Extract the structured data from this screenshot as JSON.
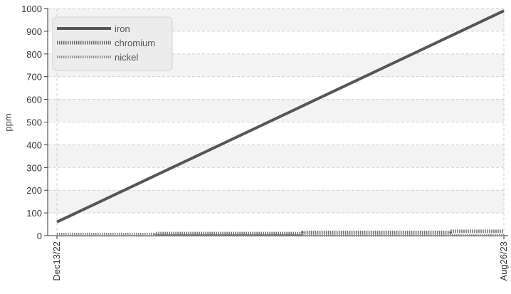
{
  "chart_data": {
    "type": "line",
    "ylabel": "ppm",
    "ylim": [
      0,
      1000
    ],
    "yticks": [
      0,
      100,
      200,
      300,
      400,
      500,
      600,
      700,
      800,
      900,
      1000
    ],
    "x_start": "Dec13/22",
    "x_end": "Aug26/23",
    "xticks": [
      "Dec13/22",
      "Aug26/23"
    ],
    "grid": true,
    "legend_position": "top-left",
    "series": [
      {
        "name": "iron",
        "color": "#555555",
        "style": "solid",
        "x": [
          0,
          1
        ],
        "values": [
          60,
          990
        ]
      },
      {
        "name": "chromium",
        "color": "#6a6a6a",
        "style": "dotted",
        "x": [
          0,
          0.22,
          0.22,
          0.55,
          0.55,
          0.88,
          0.88,
          1
        ],
        "values": [
          4,
          4,
          9,
          9,
          14,
          14,
          19,
          19
        ]
      },
      {
        "name": "nickel",
        "color": "#8a8a8a",
        "style": "dotted-thin",
        "x": [
          0,
          1
        ],
        "values": [
          1,
          1
        ]
      }
    ]
  }
}
